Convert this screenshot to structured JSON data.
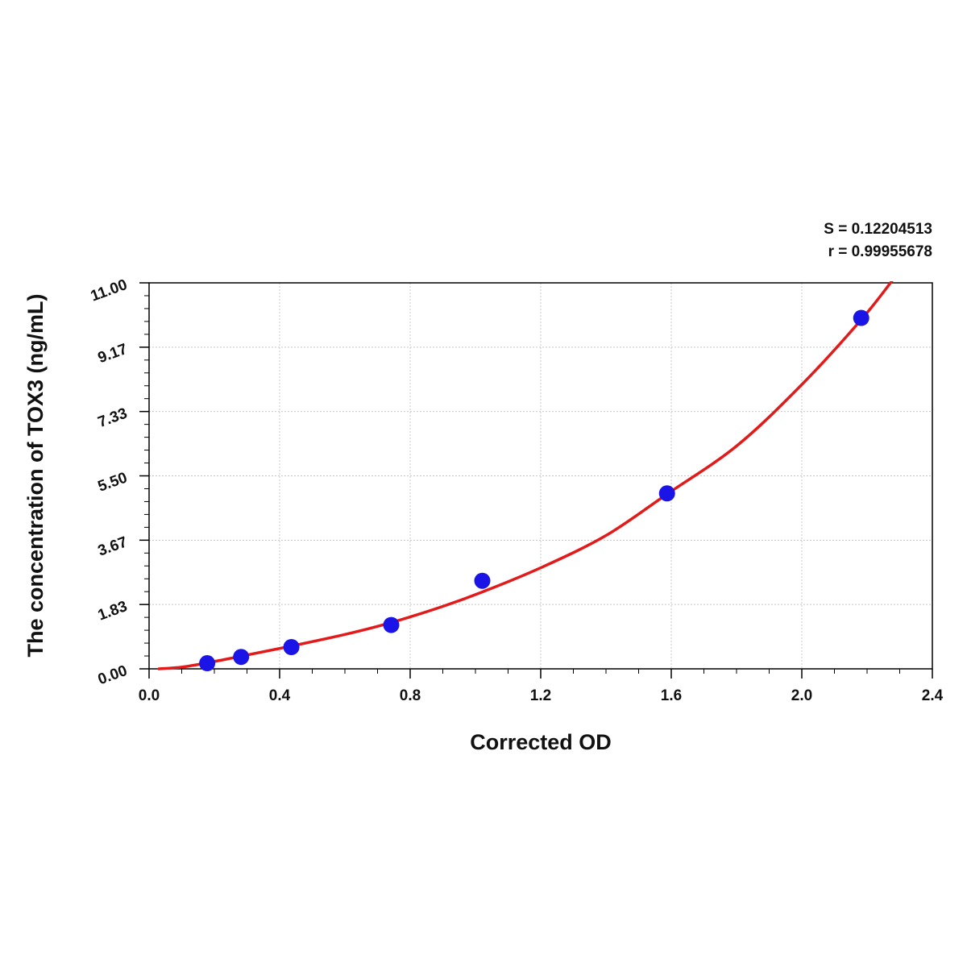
{
  "chart_data": {
    "type": "scatter",
    "title": "",
    "xlabel": "Corrected OD",
    "ylabel": "The concentration of TOX3 (ng/mL)",
    "xlim": [
      0,
      2.4
    ],
    "ylim": [
      0,
      11
    ],
    "x_ticks": [
      "0.0",
      "0.4",
      "0.8",
      "1.2",
      "1.6",
      "2.0",
      "2.4"
    ],
    "y_ticks": [
      "0.00",
      "1.83",
      "3.67",
      "5.50",
      "7.33",
      "9.17",
      "11.00"
    ],
    "grid": true,
    "series": [
      {
        "type": "scatter",
        "color": "#1a14e6",
        "points": [
          {
            "x": 0.178,
            "y": 0.16
          },
          {
            "x": 0.282,
            "y": 0.34
          },
          {
            "x": 0.436,
            "y": 0.62
          },
          {
            "x": 0.742,
            "y": 1.25
          },
          {
            "x": 1.021,
            "y": 2.51
          },
          {
            "x": 1.587,
            "y": 5.0
          },
          {
            "x": 2.182,
            "y": 10.0
          }
        ]
      },
      {
        "type": "line",
        "color": "#e31a1a",
        "points": [
          {
            "x": 0.03,
            "y": 0.0
          },
          {
            "x": 0.1,
            "y": 0.05
          },
          {
            "x": 0.178,
            "y": 0.17
          },
          {
            "x": 0.282,
            "y": 0.36
          },
          {
            "x": 0.436,
            "y": 0.65
          },
          {
            "x": 0.6,
            "y": 0.98
          },
          {
            "x": 0.742,
            "y": 1.32
          },
          {
            "x": 0.9,
            "y": 1.78
          },
          {
            "x": 1.021,
            "y": 2.19
          },
          {
            "x": 1.2,
            "y": 2.88
          },
          {
            "x": 1.4,
            "y": 3.8
          },
          {
            "x": 1.587,
            "y": 4.98
          },
          {
            "x": 1.8,
            "y": 6.35
          },
          {
            "x": 2.0,
            "y": 8.1
          },
          {
            "x": 2.182,
            "y": 9.95
          },
          {
            "x": 2.28,
            "y": 11.1
          }
        ]
      }
    ],
    "annotations": [
      "S = 0.12204513",
      "r = 0.99955678"
    ],
    "annotation_placement": "top-right",
    "colors": {
      "points": "#1a14e6",
      "curve": "#e31a1a",
      "grid": "#c8c8c8",
      "axis": "#000000"
    }
  }
}
